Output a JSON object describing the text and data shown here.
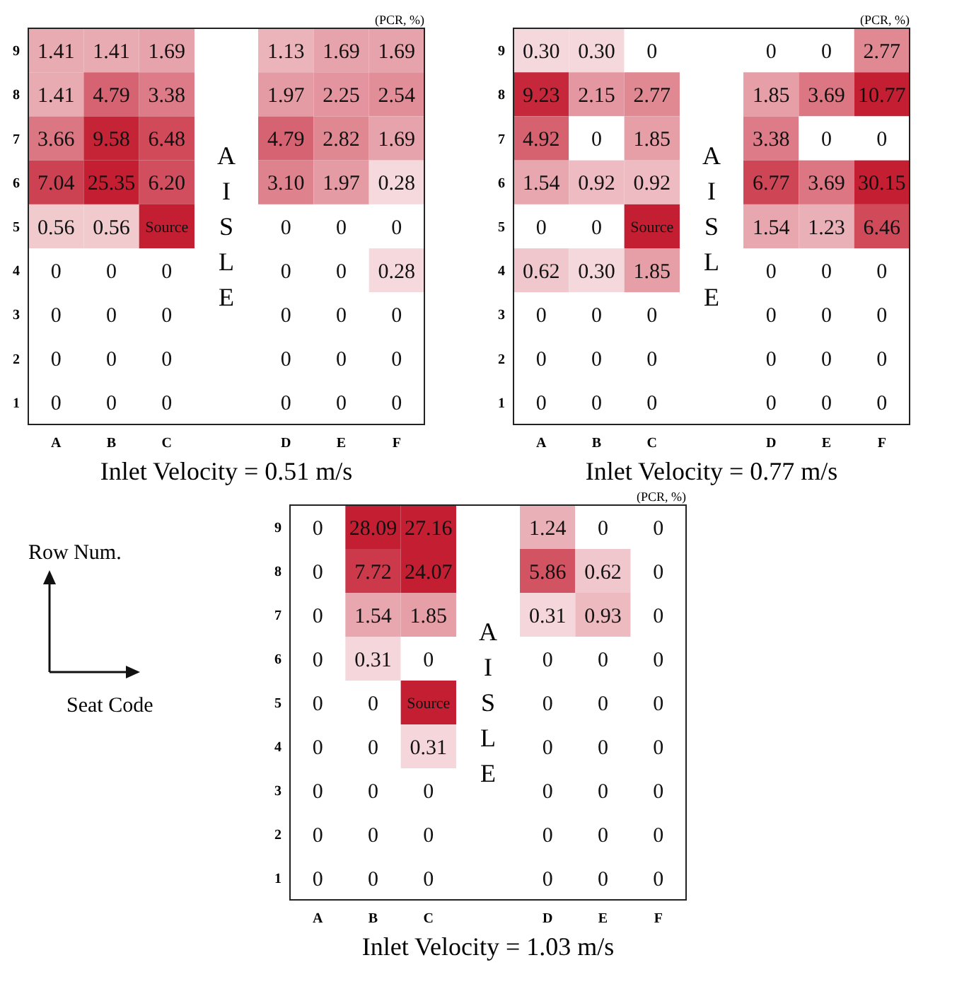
{
  "chart_data": [
    {
      "type": "heatmap",
      "xlabel": "Inlet Velocity = 0.51 m/s",
      "color": "#c41e32",
      "annotations": [
        "(PCR, %)",
        "AISLE"
      ],
      "categories": [
        "A",
        "B",
        "C",
        null,
        "D",
        "E",
        "F"
      ],
      "y_categories": [
        "9",
        "8",
        "7",
        "6",
        "5",
        "4",
        "3",
        "2",
        "1"
      ],
      "cells": [
        [
          1.41,
          1.41,
          1.69,
          null,
          1.13,
          1.69,
          1.69
        ],
        [
          1.41,
          4.79,
          3.38,
          null,
          1.97,
          2.25,
          2.54
        ],
        [
          3.66,
          9.58,
          6.48,
          null,
          4.79,
          2.82,
          1.69
        ],
        [
          7.04,
          25.35,
          6.2,
          null,
          3.1,
          1.97,
          0.28
        ],
        [
          0.56,
          0.56,
          null,
          null,
          0,
          0,
          0
        ],
        [
          0,
          0,
          0,
          null,
          0,
          0,
          0.28
        ],
        [
          0,
          0,
          0,
          null,
          0,
          0,
          0
        ],
        [
          0,
          0,
          0,
          null,
          0,
          0,
          0
        ],
        [
          0,
          0,
          0,
          null,
          0,
          0,
          0
        ]
      ],
      "cell_labels": [
        [
          "1.41",
          "1.41",
          "1.69",
          null,
          "1.13",
          "1.69",
          "1.69"
        ],
        [
          "1.41",
          "4.79",
          "3.38",
          null,
          "1.97",
          "2.25",
          "2.54"
        ],
        [
          "3.66",
          "9.58",
          "6.48",
          null,
          "4.79",
          "2.82",
          "1.69"
        ],
        [
          "7.04",
          "25.35",
          "6.20",
          null,
          "3.10",
          "1.97",
          "0.28"
        ],
        [
          "0.56",
          "0.56",
          "Source",
          null,
          "0",
          "0",
          "0"
        ],
        [
          "0",
          "0",
          "0",
          null,
          "0",
          "0",
          "0.28"
        ],
        [
          "0",
          "0",
          "0",
          null,
          "0",
          "0",
          "0"
        ],
        [
          "0",
          "0",
          "0",
          null,
          "0",
          "0",
          "0"
        ],
        [
          "0",
          "0",
          "0",
          null,
          "0",
          "0",
          "0"
        ]
      ]
    },
    {
      "type": "heatmap",
      "xlabel": "Inlet Velocity = 0.77 m/s",
      "color": "#c41e32",
      "annotations": [
        "(PCR, %)",
        "AISLE"
      ],
      "categories": [
        "A",
        "B",
        "C",
        null,
        "D",
        "E",
        "F"
      ],
      "y_categories": [
        "9",
        "8",
        "7",
        "6",
        "5",
        "4",
        "3",
        "2",
        "1"
      ],
      "cells": [
        [
          0.3,
          0.3,
          0,
          null,
          0,
          0,
          2.77
        ],
        [
          9.23,
          2.15,
          2.77,
          null,
          1.85,
          3.69,
          10.77
        ],
        [
          4.92,
          0,
          1.85,
          null,
          3.38,
          0,
          0
        ],
        [
          1.54,
          0.92,
          0.92,
          null,
          6.77,
          3.69,
          30.15
        ],
        [
          0,
          0,
          null,
          null,
          1.54,
          1.23,
          6.46
        ],
        [
          0.62,
          0.3,
          1.85,
          null,
          0,
          0,
          0
        ],
        [
          0,
          0,
          0,
          null,
          0,
          0,
          0
        ],
        [
          0,
          0,
          0,
          null,
          0,
          0,
          0
        ],
        [
          0,
          0,
          0,
          null,
          0,
          0,
          0
        ]
      ],
      "cell_labels": [
        [
          "0.30",
          "0.30",
          "0",
          null,
          "0",
          "0",
          "2.77"
        ],
        [
          "9.23",
          "2.15",
          "2.77",
          null,
          "1.85",
          "3.69",
          "10.77"
        ],
        [
          "4.92",
          "0",
          "1.85",
          null,
          "3.38",
          "0",
          "0"
        ],
        [
          "1.54",
          "0.92",
          "0.92",
          null,
          "6.77",
          "3.69",
          "30.15"
        ],
        [
          "0",
          "0",
          "Source",
          null,
          "1.54",
          "1.23",
          "6.46"
        ],
        [
          "0.62",
          "0.30",
          "1.85",
          null,
          "0",
          "0",
          "0"
        ],
        [
          "0",
          "0",
          "0",
          null,
          "0",
          "0",
          "0"
        ],
        [
          "0",
          "0",
          "0",
          null,
          "0",
          "0",
          "0"
        ],
        [
          "0",
          "0",
          "0",
          null,
          "0",
          "0",
          "0"
        ]
      ]
    },
    {
      "type": "heatmap",
      "xlabel": "Inlet Velocity = 1.03 m/s",
      "color": "#c41e32",
      "annotations": [
        "(PCR, %)",
        "AISLE",
        "Row Num.",
        "Seat Code"
      ],
      "categories": [
        "A",
        "B",
        "C",
        null,
        "D",
        "E",
        "F"
      ],
      "y_categories": [
        "9",
        "8",
        "7",
        "6",
        "5",
        "4",
        "3",
        "2",
        "1"
      ],
      "cells": [
        [
          0,
          28.09,
          27.16,
          null,
          1.24,
          0,
          0
        ],
        [
          0,
          7.72,
          24.07,
          null,
          5.86,
          0.62,
          0
        ],
        [
          0,
          1.54,
          1.85,
          null,
          0.31,
          0.93,
          0
        ],
        [
          0,
          0.31,
          0,
          null,
          0,
          0,
          0
        ],
        [
          0,
          0,
          null,
          null,
          0,
          0,
          0
        ],
        [
          0,
          0,
          0.31,
          null,
          0,
          0,
          0
        ],
        [
          0,
          0,
          0,
          null,
          0,
          0,
          0
        ],
        [
          0,
          0,
          0,
          null,
          0,
          0,
          0
        ],
        [
          0,
          0,
          0,
          null,
          0,
          0,
          0
        ]
      ],
      "cell_labels": [
        [
          "0",
          "28.09",
          "27.16",
          null,
          "1.24",
          "0",
          "0"
        ],
        [
          "0",
          "7.72",
          "24.07",
          null,
          "5.86",
          "0.62",
          "0"
        ],
        [
          "0",
          "1.54",
          "1.85",
          null,
          "0.31",
          "0.93",
          "0"
        ],
        [
          "0",
          "0.31",
          "0",
          null,
          "0",
          "0",
          "0"
        ],
        [
          "0",
          "0",
          "Source",
          null,
          "0",
          "0",
          "0"
        ],
        [
          "0",
          "0",
          "0.31",
          null,
          "0",
          "0",
          "0"
        ],
        [
          "0",
          "0",
          "0",
          null,
          "0",
          "0",
          "0"
        ],
        [
          "0",
          "0",
          "0",
          null,
          "0",
          "0",
          "0"
        ],
        [
          "0",
          "0",
          "0",
          null,
          "0",
          "0",
          "0"
        ]
      ]
    }
  ]
}
